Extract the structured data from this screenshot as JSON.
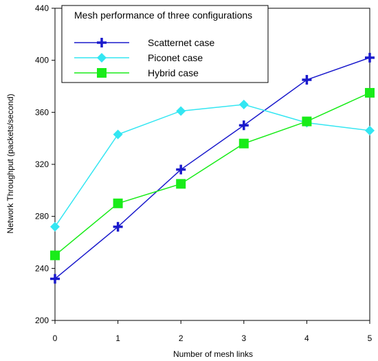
{
  "chart_data": {
    "type": "line",
    "legend_title": "Mesh performance of three configurations",
    "xlabel": "Number of mesh links",
    "ylabel": "Network Throughput (packets/second)",
    "x": [
      0,
      1,
      2,
      3,
      4,
      5
    ],
    "xlim": [
      0,
      5
    ],
    "ylim": [
      200,
      440
    ],
    "xticks": [
      "0",
      "1",
      "2",
      "3",
      "4",
      "5"
    ],
    "yticks": [
      "200",
      "240",
      "280",
      "320",
      "360",
      "400",
      "440"
    ],
    "grid": false,
    "legend_position": "top-left",
    "series": [
      {
        "name": "Scatternet case",
        "color": "#1a1acc",
        "marker": "plus",
        "values": [
          232,
          272,
          316,
          350,
          385,
          402
        ]
      },
      {
        "name": "Piconet case",
        "color": "#33e6f2",
        "marker": "diamond",
        "values": [
          272,
          343,
          361,
          366,
          352,
          346
        ]
      },
      {
        "name": "Hybrid case",
        "color": "#19ec19",
        "marker": "square",
        "values": [
          250,
          290,
          305,
          336,
          353,
          375
        ]
      }
    ]
  }
}
